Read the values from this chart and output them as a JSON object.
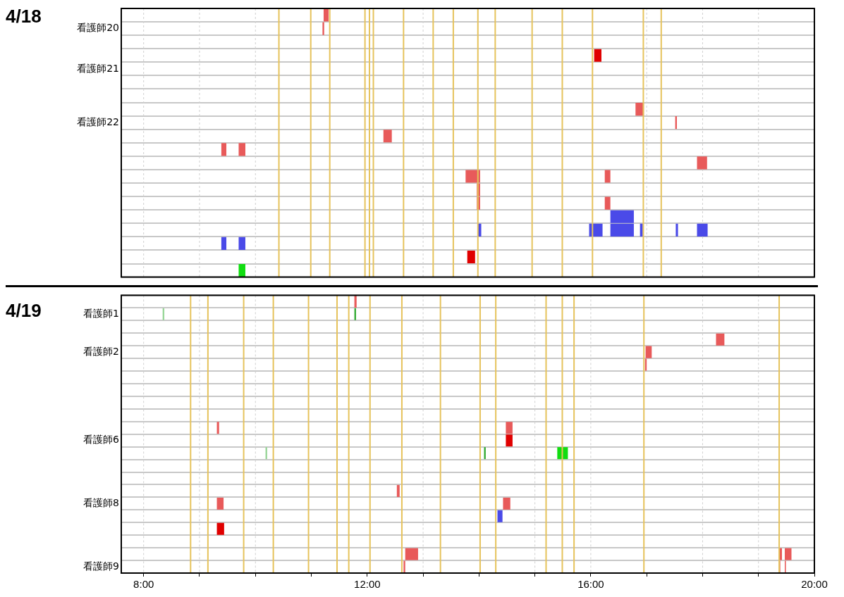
{
  "chart_data": [
    {
      "type": "bar",
      "title": "4/18",
      "orientation": "horizontal",
      "tick_labels": "y",
      "grid": true,
      "categories": [
        null,
        "看護師20",
        null,
        null,
        "看護師21",
        null,
        null,
        null,
        "看護師22",
        null,
        null,
        null,
        null,
        null,
        null,
        null,
        null,
        null,
        null,
        null
      ],
      "xlim": [
        7.6,
        20
      ],
      "xticks": [
        {
          "value": 8,
          "label": null
        },
        {
          "value": 9,
          "label": null
        },
        {
          "value": 10,
          "label": null
        },
        {
          "value": 11,
          "label": null
        },
        {
          "value": 12,
          "label": null
        },
        {
          "value": 13,
          "label": null
        },
        {
          "value": 14,
          "label": null
        },
        {
          "value": 15,
          "label": null
        },
        {
          "value": 16,
          "label": null
        },
        {
          "value": 17,
          "label": null
        },
        {
          "value": 18,
          "label": null
        },
        {
          "value": 19,
          "label": null
        },
        {
          "value": 20,
          "label": null
        }
      ],
      "series": [
        {
          "color": "#e85a5a",
          "values": [
            0.09,
            0.03,
            null,
            null,
            null,
            null,
            null,
            0.15,
            0.03,
            0.15,
            0.09,
            0.18,
            0.26,
            0.06,
            0.06,
            null,
            null,
            null,
            null,
            null
          ],
          "base": [
            11.22,
            11.2,
            null,
            null,
            null,
            null,
            null,
            16.8,
            17.51,
            12.29,
            9.39,
            17.9,
            13.76,
            13.96,
            13.96,
            null,
            null,
            null,
            null,
            null
          ]
        },
        {
          "color": "#e85a5a",
          "values": [
            null,
            null,
            null,
            null,
            null,
            null,
            null,
            null,
            null,
            null,
            0.12,
            null,
            0.1,
            null,
            0.1,
            null,
            null,
            null,
            null,
            null
          ],
          "base": [
            null,
            null,
            null,
            null,
            null,
            null,
            null,
            null,
            null,
            null,
            9.7,
            null,
            16.25,
            null,
            16.25,
            null,
            null,
            null,
            null,
            null
          ]
        },
        {
          "color": "#e00000",
          "values": [
            null,
            null,
            null,
            0.13,
            null,
            null,
            null,
            null,
            null,
            null,
            null,
            null,
            null,
            null,
            null,
            null,
            null,
            null,
            0.14,
            null
          ],
          "base": [
            null,
            null,
            null,
            16.06,
            null,
            null,
            null,
            null,
            null,
            null,
            null,
            null,
            null,
            null,
            null,
            null,
            null,
            null,
            13.79,
            null
          ]
        },
        {
          "color": "#4a4ae8",
          "values": [
            null,
            null,
            null,
            null,
            null,
            null,
            null,
            null,
            null,
            null,
            null,
            null,
            null,
            null,
            null,
            0.42,
            0.06,
            0.09,
            null,
            null
          ],
          "base": [
            null,
            null,
            null,
            null,
            null,
            null,
            null,
            null,
            null,
            null,
            null,
            null,
            null,
            null,
            null,
            16.35,
            13.98,
            9.39,
            null,
            null
          ]
        },
        {
          "color": "#4a4ae8",
          "values": [
            null,
            null,
            null,
            null,
            null,
            null,
            null,
            null,
            null,
            null,
            null,
            null,
            null,
            null,
            null,
            null,
            0.24,
            0.12,
            null,
            null
          ],
          "base": [
            null,
            null,
            null,
            null,
            null,
            null,
            null,
            null,
            null,
            null,
            null,
            null,
            null,
            null,
            null,
            null,
            15.97,
            9.7,
            null,
            null
          ]
        },
        {
          "color": "#4a4ae8",
          "values": [
            null,
            null,
            null,
            null,
            null,
            null,
            null,
            null,
            null,
            null,
            null,
            null,
            null,
            null,
            null,
            null,
            0.42,
            null,
            null,
            null
          ],
          "base": [
            null,
            null,
            null,
            null,
            null,
            null,
            null,
            null,
            null,
            null,
            null,
            null,
            null,
            null,
            null,
            null,
            16.35,
            null,
            null,
            null
          ]
        },
        {
          "color": "#4a4ae8",
          "values": [
            null,
            null,
            null,
            null,
            null,
            null,
            null,
            null,
            null,
            null,
            null,
            null,
            null,
            null,
            null,
            null,
            0.05,
            null,
            null,
            null
          ],
          "base": [
            null,
            null,
            null,
            null,
            null,
            null,
            null,
            null,
            null,
            null,
            null,
            null,
            null,
            null,
            null,
            null,
            16.88,
            null,
            null,
            null
          ]
        },
        {
          "color": "#4a4ae8",
          "values": [
            null,
            null,
            null,
            null,
            null,
            null,
            null,
            null,
            null,
            null,
            null,
            null,
            null,
            null,
            null,
            null,
            0.04,
            null,
            null,
            null
          ],
          "base": [
            null,
            null,
            null,
            null,
            null,
            null,
            null,
            null,
            null,
            null,
            null,
            null,
            null,
            null,
            null,
            null,
            17.52,
            null,
            null,
            null
          ]
        },
        {
          "color": "#4a4ae8",
          "values": [
            null,
            null,
            null,
            null,
            null,
            null,
            null,
            null,
            null,
            null,
            null,
            null,
            null,
            null,
            null,
            null,
            0.19,
            null,
            null,
            null
          ],
          "base": [
            null,
            null,
            null,
            null,
            null,
            null,
            null,
            null,
            null,
            null,
            null,
            null,
            null,
            null,
            null,
            null,
            17.9,
            null,
            null,
            null
          ]
        },
        {
          "color": "#11dd11",
          "values": [
            null,
            null,
            null,
            null,
            null,
            null,
            null,
            null,
            null,
            null,
            null,
            null,
            null,
            null,
            null,
            null,
            null,
            null,
            null,
            0.12
          ],
          "base": [
            null,
            null,
            null,
            null,
            null,
            null,
            null,
            null,
            null,
            null,
            null,
            null,
            null,
            null,
            null,
            null,
            null,
            null,
            null,
            9.7
          ]
        }
      ],
      "ref_lines": [
        {
          "axis": "x",
          "value": 10.42,
          "color": "#e6c35c"
        },
        {
          "axis": "x",
          "value": 10.99,
          "color": "#e6c35c"
        },
        {
          "axis": "x",
          "value": 11.33,
          "color": "#e6c35c"
        },
        {
          "axis": "x",
          "value": 11.96,
          "color": "#e6c35c"
        },
        {
          "axis": "x",
          "value": 12.04,
          "color": "#e6c35c"
        },
        {
          "axis": "x",
          "value": 12.11,
          "color": "#e6c35c"
        },
        {
          "axis": "x",
          "value": 12.65,
          "color": "#e6c35c"
        },
        {
          "axis": "x",
          "value": 13.18,
          "color": "#e6c35c"
        },
        {
          "axis": "x",
          "value": 13.54,
          "color": "#e6c35c"
        },
        {
          "axis": "x",
          "value": 13.98,
          "color": "#e6c35c"
        },
        {
          "axis": "x",
          "value": 14.29,
          "color": "#e6c35c"
        },
        {
          "axis": "x",
          "value": 14.95,
          "color": "#e6c35c"
        },
        {
          "axis": "x",
          "value": 15.49,
          "color": "#e6c35c"
        },
        {
          "axis": "x",
          "value": 16.03,
          "color": "#e6c35c"
        },
        {
          "axis": "x",
          "value": 16.94,
          "color": "#e6c35c"
        },
        {
          "axis": "x",
          "value": 17.26,
          "color": "#e6c35c"
        }
      ]
    },
    {
      "type": "bar",
      "title": "4/19",
      "orientation": "horizontal",
      "grid": true,
      "categories": [
        null,
        "看護師1",
        null,
        null,
        "看護師2",
        null,
        null,
        null,
        null,
        null,
        null,
        "看護師6",
        null,
        null,
        null,
        null,
        "看護師8",
        null,
        null,
        null,
        null,
        "看護師9"
      ],
      "xlim": [
        7.6,
        20
      ],
      "xticks": [
        {
          "value": 8,
          "label": "8:00"
        },
        {
          "value": 9,
          "label": null
        },
        {
          "value": 10,
          "label": null
        },
        {
          "value": 11,
          "label": null
        },
        {
          "value": 12,
          "label": "12:00"
        },
        {
          "value": 13,
          "label": null
        },
        {
          "value": 14,
          "label": null
        },
        {
          "value": 15,
          "label": null
        },
        {
          "value": 16,
          "label": "16:00"
        },
        {
          "value": 17,
          "label": null
        },
        {
          "value": 18,
          "label": null
        },
        {
          "value": 19,
          "label": null
        },
        {
          "value": 20,
          "label": "20:00"
        }
      ],
      "series": [
        {
          "color": "#e85a5a",
          "values": [
            0.04,
            null,
            null,
            0.15,
            0.11,
            0.03,
            null,
            null,
            null,
            null,
            0.04,
            null,
            null,
            null,
            null,
            0.05,
            0.12,
            null,
            null,
            null,
            0.23,
            0.03
          ],
          "base": [
            11.77,
            null,
            null,
            18.24,
            16.98,
            16.97,
            null,
            null,
            null,
            null,
            9.31,
            null,
            null,
            null,
            null,
            12.53,
            9.31,
            null,
            null,
            null,
            12.68,
            12.65
          ]
        },
        {
          "color": "#e85a5a",
          "values": [
            null,
            null,
            null,
            null,
            null,
            null,
            null,
            null,
            null,
            null,
            0.12,
            null,
            null,
            null,
            null,
            null,
            0.13,
            null,
            null,
            null,
            0.05,
            0.02
          ],
          "base": [
            null,
            null,
            null,
            null,
            null,
            null,
            null,
            null,
            null,
            null,
            14.48,
            null,
            null,
            null,
            null,
            null,
            14.43,
            null,
            null,
            null,
            19.37,
            19.37
          ]
        },
        {
          "color": "#e85a5a",
          "values": [
            null,
            null,
            null,
            null,
            null,
            null,
            null,
            null,
            null,
            null,
            null,
            null,
            null,
            null,
            null,
            null,
            null,
            null,
            null,
            null,
            0.12,
            0.02
          ],
          "base": [
            null,
            null,
            null,
            null,
            null,
            null,
            null,
            null,
            null,
            null,
            null,
            null,
            null,
            null,
            null,
            null,
            null,
            null,
            null,
            null,
            19.47,
            19.47
          ]
        },
        {
          "color": "#e00000",
          "values": [
            null,
            null,
            null,
            null,
            null,
            null,
            null,
            null,
            null,
            null,
            null,
            0.12,
            null,
            null,
            null,
            null,
            null,
            null,
            0.13,
            null,
            null,
            null
          ],
          "base": [
            null,
            null,
            null,
            null,
            null,
            null,
            null,
            null,
            null,
            null,
            null,
            14.48,
            null,
            null,
            null,
            null,
            null,
            null,
            9.31,
            null,
            null,
            null
          ]
        },
        {
          "color": "#99d699",
          "values": [
            null,
            0.03,
            null,
            null,
            null,
            null,
            null,
            null,
            null,
            null,
            null,
            null,
            0.03,
            null,
            null,
            null,
            null,
            null,
            null,
            null,
            null,
            null
          ],
          "base": [
            null,
            8.34,
            null,
            null,
            null,
            null,
            null,
            null,
            null,
            null,
            null,
            null,
            10.18,
            null,
            null,
            null,
            null,
            null,
            null,
            null,
            null,
            null
          ]
        },
        {
          "color": "#33aa33",
          "values": [
            null,
            0.03,
            null,
            null,
            null,
            null,
            null,
            null,
            null,
            null,
            null,
            null,
            0.03,
            null,
            null,
            null,
            null,
            null,
            null,
            null,
            null,
            null
          ],
          "base": [
            null,
            11.77,
            null,
            null,
            null,
            null,
            null,
            null,
            null,
            null,
            null,
            null,
            14.09,
            null,
            null,
            null,
            null,
            null,
            null,
            null,
            null,
            null
          ]
        },
        {
          "color": "#11dd11",
          "values": [
            null,
            null,
            null,
            null,
            null,
            null,
            null,
            null,
            null,
            null,
            null,
            null,
            0.19,
            null,
            null,
            null,
            null,
            null,
            null,
            null,
            null,
            null
          ],
          "base": [
            null,
            null,
            null,
            null,
            null,
            null,
            null,
            null,
            null,
            null,
            null,
            null,
            15.4,
            null,
            null,
            null,
            null,
            null,
            null,
            null,
            null,
            null
          ]
        },
        {
          "color": "#4a4ae8",
          "values": [
            null,
            null,
            null,
            null,
            null,
            null,
            null,
            null,
            null,
            null,
            null,
            null,
            null,
            null,
            null,
            null,
            null,
            0.09,
            null,
            null,
            null,
            null
          ],
          "base": [
            null,
            null,
            null,
            null,
            null,
            null,
            null,
            null,
            null,
            null,
            null,
            null,
            null,
            null,
            null,
            null,
            null,
            14.33,
            null,
            null,
            null,
            null
          ]
        }
      ],
      "ref_lines": [
        {
          "axis": "x",
          "value": 8.84,
          "color": "#e6c35c"
        },
        {
          "axis": "x",
          "value": 9.15,
          "color": "#e6c35c"
        },
        {
          "axis": "x",
          "value": 9.79,
          "color": "#e6c35c"
        },
        {
          "axis": "x",
          "value": 10.32,
          "color": "#e6c35c"
        },
        {
          "axis": "x",
          "value": 10.95,
          "color": "#e6c35c"
        },
        {
          "axis": "x",
          "value": 11.46,
          "color": "#e6c35c"
        },
        {
          "axis": "x",
          "value": 11.67,
          "color": "#e6c35c"
        },
        {
          "axis": "x",
          "value": 12.05,
          "color": "#e6c35c"
        },
        {
          "axis": "x",
          "value": 12.62,
          "color": "#e6c35c"
        },
        {
          "axis": "x",
          "value": 13.31,
          "color": "#e6c35c"
        },
        {
          "axis": "x",
          "value": 14.02,
          "color": "#e6c35c"
        },
        {
          "axis": "x",
          "value": 14.3,
          "color": "#e6c35c"
        },
        {
          "axis": "x",
          "value": 15.2,
          "color": "#e6c35c"
        },
        {
          "axis": "x",
          "value": 15.49,
          "color": "#e6c35c"
        },
        {
          "axis": "x",
          "value": 15.7,
          "color": "#e6c35c"
        },
        {
          "axis": "x",
          "value": 16.95,
          "color": "#e6c35c"
        },
        {
          "axis": "x",
          "value": 19.37,
          "color": "#e6c35c"
        }
      ]
    }
  ]
}
